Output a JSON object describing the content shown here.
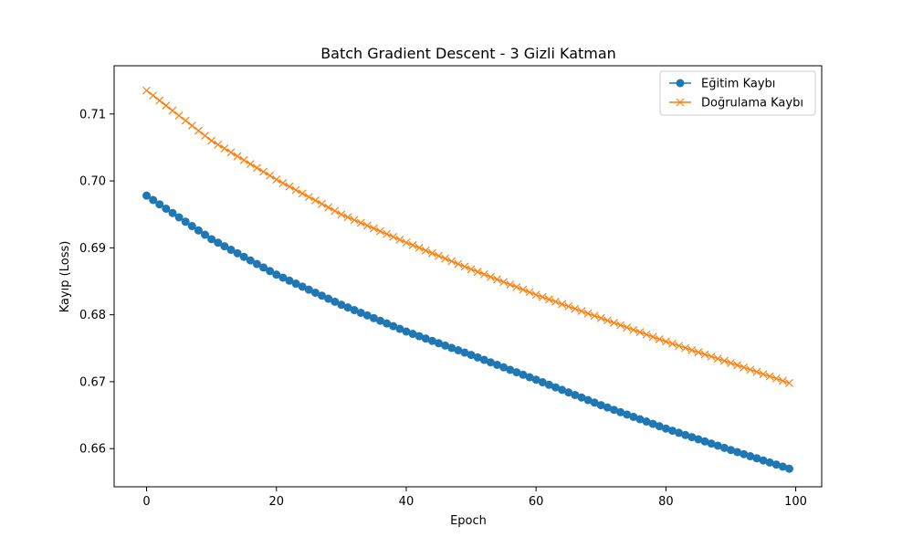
{
  "chart_data": {
    "type": "line",
    "title": "Batch Gradient Descent - 3 Gizli Katman",
    "xlabel": "Epoch",
    "ylabel": "Kayıp (Loss)",
    "xlim": [
      -5,
      104
    ],
    "ylim": [
      0.6543,
      0.7172
    ],
    "xticks": [
      0,
      20,
      40,
      60,
      80,
      100
    ],
    "xtick_labels": [
      "0",
      "20",
      "40",
      "60",
      "80",
      "100"
    ],
    "yticks": [
      0.66,
      0.67,
      0.68,
      0.69,
      0.7,
      0.71
    ],
    "ytick_labels": [
      "0.66",
      "0.67",
      "0.68",
      "0.69",
      "0.70",
      "0.71"
    ],
    "grid": false,
    "legend_position": "top-right",
    "series": [
      {
        "name": "Eğitim Kaybı",
        "color": "#1f77b4",
        "marker": "circle",
        "x_start": 0,
        "x_end": 99,
        "anchors": [
          [
            0,
            0.6978
          ],
          [
            10,
            0.6913
          ],
          [
            20,
            0.686
          ],
          [
            30,
            0.6815
          ],
          [
            40,
            0.6775
          ],
          [
            50,
            0.674
          ],
          [
            60,
            0.6703
          ],
          [
            70,
            0.6665
          ],
          [
            80,
            0.663
          ],
          [
            90,
            0.6598
          ],
          [
            99,
            0.657
          ]
        ]
      },
      {
        "name": "Doğrulama Kaybı",
        "color": "#ff7f0e",
        "marker": "x",
        "x_start": 0,
        "x_end": 99,
        "anchors": [
          [
            0,
            0.7135
          ],
          [
            10,
            0.706
          ],
          [
            20,
            0.7002
          ],
          [
            30,
            0.695
          ],
          [
            40,
            0.6908
          ],
          [
            50,
            0.6868
          ],
          [
            60,
            0.683
          ],
          [
            70,
            0.6795
          ],
          [
            80,
            0.676
          ],
          [
            90,
            0.6728
          ],
          [
            99,
            0.6698
          ]
        ]
      }
    ]
  }
}
